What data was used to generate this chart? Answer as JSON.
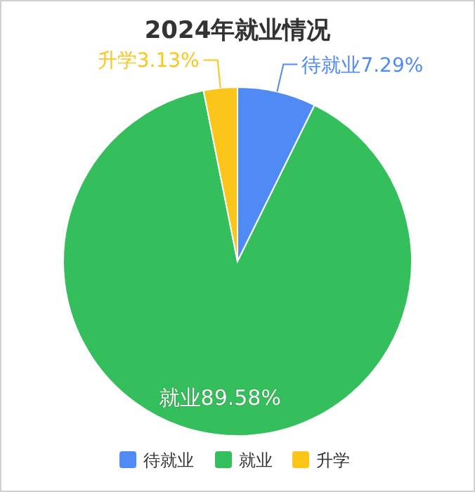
{
  "chart_data": {
    "type": "pie",
    "title": "2024年就业情况",
    "categories": [
      "待就业",
      "就业",
      "升学"
    ],
    "values": [
      7.29,
      89.58,
      3.13
    ],
    "colors": [
      "#4f8af5",
      "#35bf5c",
      "#fcc51a"
    ],
    "value_labels": [
      "待就业7.29%",
      "就业89.58%",
      "升学3.13%"
    ],
    "legend": "bottom"
  }
}
